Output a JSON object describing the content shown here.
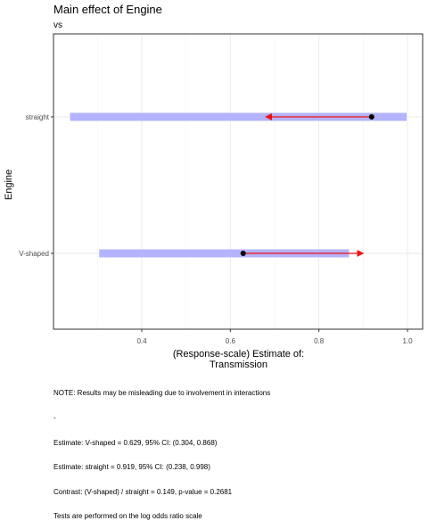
{
  "chart_data": {
    "type": "scatter",
    "title": "Main effect of Engine",
    "subtitle": "vs",
    "xlabel": "(Response-scale) Estimate of: Transmission",
    "ylabel": "Engine",
    "xlim": [
      0.2,
      1.0
    ],
    "x_ticks": [
      "0.4",
      "0.6",
      "0.8",
      "1.0"
    ],
    "x_tick_values": [
      0.4,
      0.6,
      0.8,
      1.0
    ],
    "categories": [
      "straight",
      "V-shaped"
    ],
    "estimates": [
      {
        "level": "straight",
        "estimate": 0.919,
        "ci_low": 0.238,
        "ci_high": 0.998,
        "arrow_to": 0.68
      },
      {
        "level": "V-shaped",
        "estimate": 0.629,
        "ci_low": 0.304,
        "ci_high": 0.868,
        "arrow_to": 0.9
      }
    ],
    "grid": true,
    "colors": {
      "ci_band": "#b3b3ff",
      "arrow": "#ee1111",
      "point": "#000000",
      "panel_border": "#333333",
      "grid": "#ebebeb"
    }
  },
  "notes": [
    "NOTE: Results may be misleading due to involvement in interactions",
    "-",
    "Estimate: V-shaped = 0.629, 95% CI: (0.304, 0.868)",
    "Estimate: straight = 0.919, 95% CI: (0.238, 0.998)",
    "Contrast: (V-shaped) / straight = 0.149, p-value = 0.2681",
    "Tests are performed on the log odds ratio scale"
  ]
}
